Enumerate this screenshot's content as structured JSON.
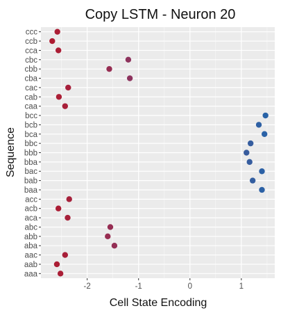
{
  "chart_data": {
    "type": "scatter",
    "title": "Copy LSTM - Neuron 20",
    "xlabel": "Cell State Encoding",
    "ylabel": "Sequence",
    "xlim": [
      -2.9,
      1.65
    ],
    "xticks": [
      -2,
      -1,
      0,
      1
    ],
    "grid": true,
    "legend": "none",
    "colors": {
      "panel": "#ebebeb",
      "grid": "#ffffff",
      "negative": "#b2182b",
      "positive": "#2166ac"
    },
    "categories": [
      "ccc",
      "ccb",
      "cca",
      "cbc",
      "cbb",
      "cba",
      "cac",
      "cab",
      "caa",
      "bcc",
      "bcb",
      "bca",
      "bbc",
      "bbb",
      "bba",
      "bac",
      "bab",
      "baa",
      "acc",
      "acb",
      "aca",
      "abc",
      "abb",
      "aba",
      "aac",
      "aab",
      "aaa"
    ],
    "values": [
      -2.58,
      -2.68,
      -2.56,
      -1.2,
      -1.57,
      -1.17,
      -2.37,
      -2.55,
      -2.43,
      1.47,
      1.34,
      1.45,
      1.18,
      1.1,
      1.16,
      1.4,
      1.22,
      1.4,
      -2.35,
      -2.56,
      -2.38,
      -1.55,
      -1.6,
      -1.47,
      -2.43,
      -2.59,
      -2.52
    ]
  }
}
